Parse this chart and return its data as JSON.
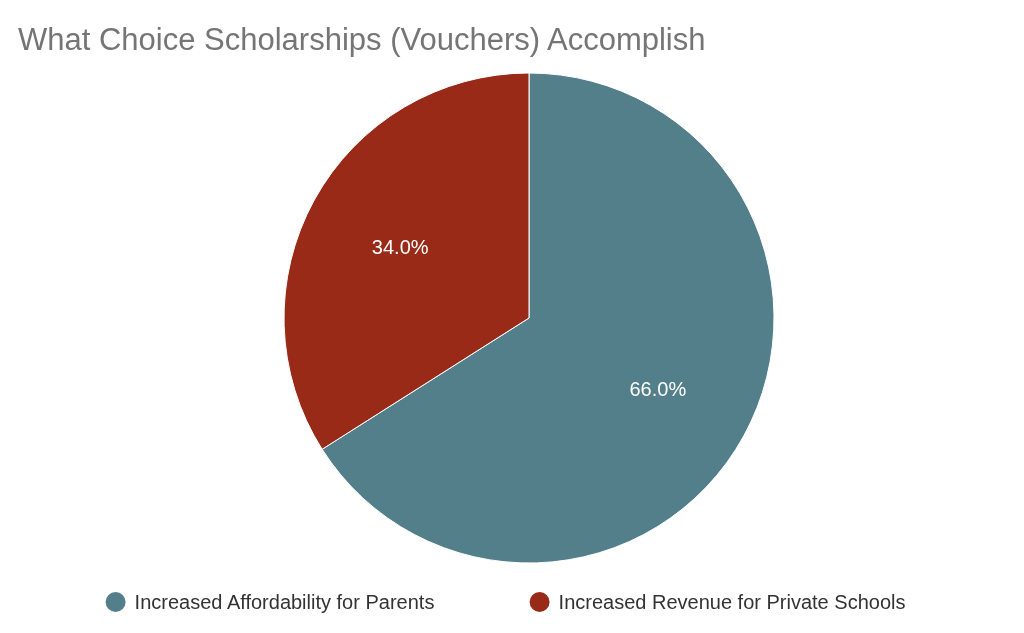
{
  "chart_data": {
    "type": "pie",
    "title": "What Choice Scholarships (Vouchers) Accomplish",
    "categories": [
      "Increased Affordability for Parents",
      "Increased Revenue for Private Schools"
    ],
    "values": [
      66,
      34
    ],
    "colors": [
      "#537f8a",
      "#982a17"
    ],
    "value_labels": [
      "66.0%",
      "34.0%"
    ],
    "legend": "bottom"
  }
}
